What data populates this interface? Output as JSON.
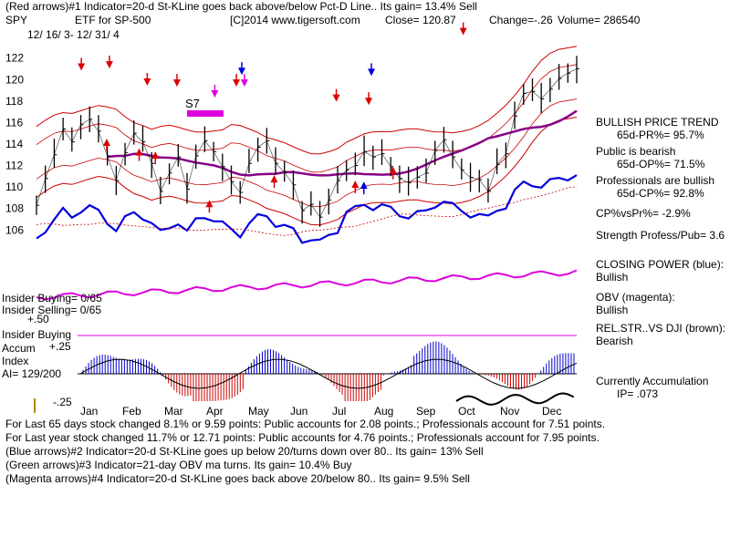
{
  "header": {
    "line1": "(Red arrows)#1 Indicator=20-d St-KLine goes back above/below Pct-D Line.. Its gain= 13.4% Sell",
    "ticker": "SPY",
    "name": "ETF for SP-500",
    "site": "[C]2014 www.tigersoft.com",
    "close": "Close=  120.87",
    "change": "Change=-.26",
    "volume": "Volume= 286540",
    "date_range": "12/ 16/ 3-  12/ 31/ 4"
  },
  "annotations": {
    "s7": "S7",
    "insider_buying": "Insider Buying= 0/65",
    "insider_selling": "Insider Selling= 0/65",
    "ai_plus50": "+.50",
    "ai_plus25": "+.25",
    "ai_minus25": "-.25",
    "ai_title_1": "Insider Buying",
    "ai_title_2": "Accum",
    "ai_title_3": "Index",
    "ai_value": "AI= 129/200"
  },
  "right_panel": {
    "trend_title": "BULLISH PRICE TREND",
    "pr": "65d-PR%= 95.7%",
    "public_line": "Public is bearish",
    "op": "65d-OP%= 71.5%",
    "pros_line": "Professionals are bullish",
    "cp": "65d-CP%= 92.8%",
    "cp_vs_pr": "CP%vsPr%= -2.9%",
    "strength": "Strength Profess/Pub= 3.6",
    "closing_power_title": "CLOSING POWER (blue):",
    "closing_power_value": "Bullish",
    "obv_title": "OBV (magenta):",
    "obv_value": "Bullish",
    "relstr_title": "REL.STR..VS DJI (brown):",
    "relstr_value": "Bearish",
    "accum_title": "Currently Accumulation",
    "ip": "IP=  .073"
  },
  "footer": {
    "line1": "For Last 65 days stock changed  8.1% or  9.59 points:  Public accounts for  2.08 points.;  Professionals account for  7.51 points.",
    "line2": "For Last year stock changed  11.7% or  12.71 points:  Public accounts for  4.76 points.;  Professionals account for  7.95 points.",
    "line3": "(Blue arrows)#2 Indicator=20-d St-KLine goes up below 20/turns down over 80.. Its gain= 13% Sell",
    "line4": "(Green arrows)#3 Indicator=21-day OBV ma turns. Its gain= 10.4% Buy",
    "line5": "(Magenta arrows)#4 Indicator=20-d St-KLine goes back above 20/below 80.. Its gain= 9.5% Sell"
  },
  "chart_data": {
    "type": "line",
    "months": [
      "Jan",
      "Feb",
      "Mar",
      "Apr",
      "May",
      "Jun",
      "Jul",
      "Aug",
      "Sep",
      "Oct",
      "Nov",
      "Dec"
    ],
    "y_ticks": [
      106,
      108,
      110,
      112,
      114,
      116,
      118,
      120,
      122
    ],
    "ylim": [
      104.5,
      123.5
    ],
    "price_close": [
      108.3,
      110.8,
      113.0,
      115.4,
      114.2,
      115.8,
      116.3,
      115.2,
      112.9,
      110.6,
      113.2,
      115.0,
      114.2,
      112.2,
      109.6,
      111.3,
      112.8,
      109.8,
      112.9,
      114.3,
      113.3,
      111.9,
      110.5,
      109.5,
      112.2,
      113.7,
      114.3,
      112.2,
      111.4,
      110.2,
      107.8,
      108.4,
      107.2,
      108.8,
      110.6,
      111.6,
      112.0,
      113.3,
      112.8,
      113.1,
      111.9,
      110.8,
      110.4,
      110.9,
      111.3,
      113.4,
      114.4,
      112.8,
      111.6,
      110.9,
      110.7,
      109.6,
      112.1,
      113.1,
      116.6,
      118.7,
      118.9,
      118.2,
      119.1,
      120.1,
      120.6,
      121.0
    ],
    "colors": {
      "price": "#000000",
      "bands": "#cc0000",
      "ma": "#880088",
      "closing_power": "#0000dd",
      "obv": "#dd00dd",
      "ai_positive": "#0000cc",
      "ai_negative": "#cc0000",
      "rel_str": "#000000"
    },
    "arrows": {
      "red_down": [
        [
          0.083,
          121.0
        ],
        [
          0.135,
          121.2
        ],
        [
          0.205,
          119.6
        ],
        [
          0.26,
          119.5
        ],
        [
          0.37,
          119.5
        ],
        [
          0.555,
          118.1
        ],
        [
          0.615,
          117.8
        ],
        [
          0.79,
          124.3
        ]
      ],
      "red_up": [
        [
          0.13,
          114.0
        ],
        [
          0.19,
          113.1
        ],
        [
          0.22,
          112.8
        ],
        [
          0.32,
          108.3
        ],
        [
          0.44,
          110.6
        ],
        [
          0.59,
          110.1
        ],
        [
          0.66,
          111.4
        ]
      ],
      "blue_down": [
        [
          0.38,
          120.6
        ],
        [
          0.62,
          120.5
        ]
      ],
      "blue_up": [
        [
          0.606,
          110.0
        ]
      ],
      "magenta_down": [
        [
          0.33,
          118.5
        ],
        [
          0.385,
          119.5
        ]
      ]
    }
  }
}
